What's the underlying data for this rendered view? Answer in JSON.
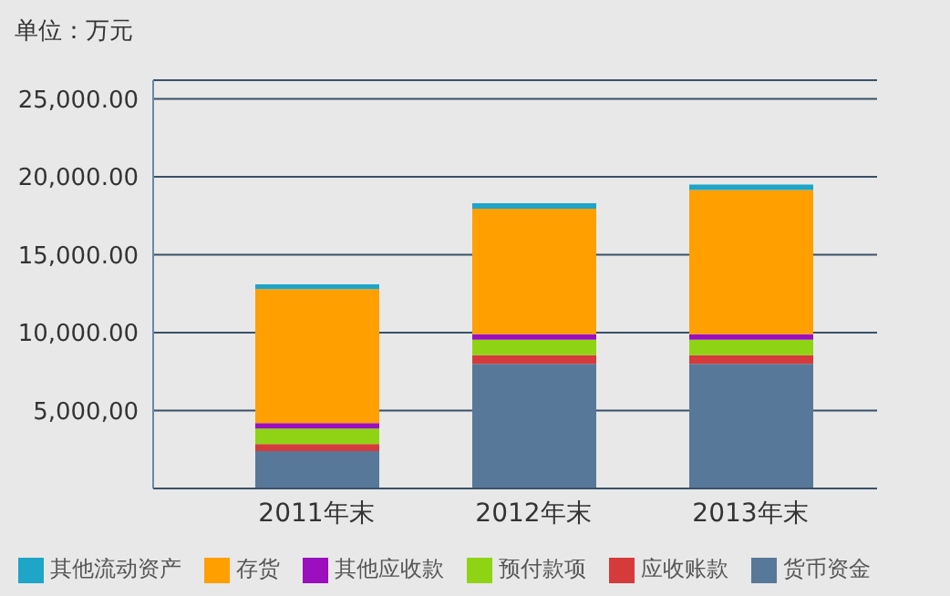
{
  "chart_data": {
    "type": "bar",
    "ylabel": "单位：万元",
    "categories": [
      "2011年末",
      "2012年末",
      "2013年末"
    ],
    "stacked": true,
    "series": [
      {
        "name": "货币资金",
        "color": "#587899",
        "values": [
          2400,
          8000,
          8000
        ]
      },
      {
        "name": "应收账款",
        "color": "#d53b3b",
        "values": [
          450,
          550,
          550
        ]
      },
      {
        "name": "预付款项",
        "color": "#8fd414",
        "values": [
          1000,
          1000,
          1000
        ]
      },
      {
        "name": "其他应收款",
        "color": "#9b0fbf",
        "values": [
          350,
          350,
          350
        ]
      },
      {
        "name": "存货",
        "color": "#ff9f00",
        "values": [
          8600,
          8050,
          9250
        ]
      },
      {
        "name": "其他流动资产",
        "color": "#1ea5c8",
        "values": [
          300,
          350,
          350
        ]
      }
    ],
    "ylim": [
      0,
      26200
    ],
    "yticks": [
      {
        "value": 5000,
        "label": "5,000,00"
      },
      {
        "value": 10000,
        "label": "10,000.00"
      },
      {
        "value": 15000,
        "label": "15,000.00"
      },
      {
        "value": 20000,
        "label": "20,000.00"
      },
      {
        "value": 25000,
        "label": "25,000.00"
      }
    ],
    "grid": "y",
    "legend": "bottom"
  }
}
